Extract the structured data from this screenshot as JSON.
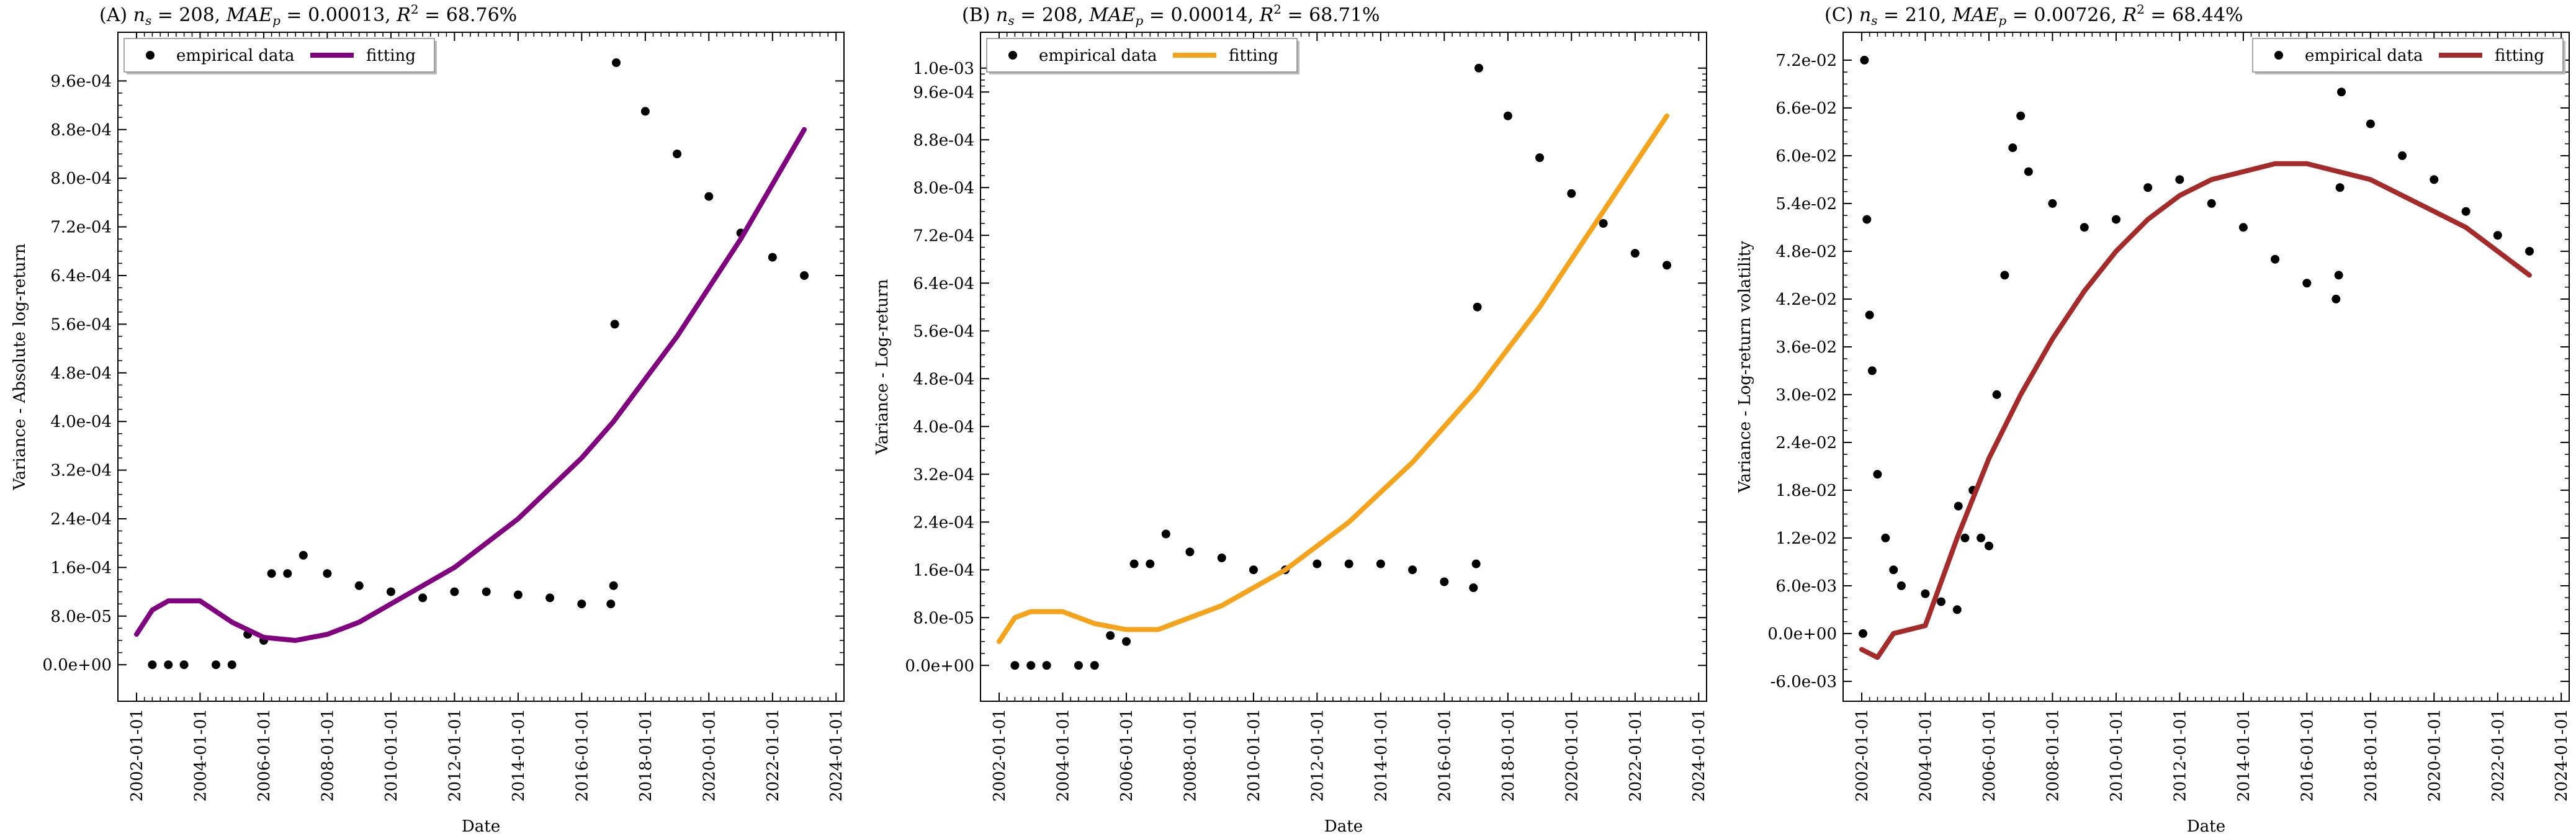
{
  "chart_data": [
    {
      "type": "scatter",
      "panel": "(A)",
      "title": "(A) n_s = 208, MAE_p = 0.00013, R² = 68.76%",
      "title_parts": {
        "prefix": "(A) ",
        "ns": "208",
        "mae": "0.00013",
        "r2": "68.76%"
      },
      "xlabel": "Date",
      "ylabel": "Variance - Absolute log-return",
      "x_tick_labels": [
        "2002-01-01",
        "2004-01-01",
        "2006-01-01",
        "2008-01-01",
        "2010-01-01",
        "2012-01-01",
        "2014-01-01",
        "2016-01-01",
        "2018-01-01",
        "2020-01-01",
        "2022-01-01",
        "2024-01-01"
      ],
      "y_tick_labels": [
        "0.0e+00",
        "8.0e-05",
        "1.6e-04",
        "2.4e-04",
        "3.2e-04",
        "4.0e-04",
        "4.8e-04",
        "5.6e-04",
        "6.4e-04",
        "7.2e-04",
        "8.0e-04",
        "8.8e-04",
        "9.6e-04"
      ],
      "y_ticks": [
        0,
        8e-05,
        0.00016,
        0.00024,
        0.00032,
        0.0004,
        0.00048,
        0.00056,
        0.00064,
        0.00072,
        0.0008,
        0.00088,
        0.00096
      ],
      "xlim": [
        "2001-06-01",
        "2024-04-01"
      ],
      "ylim": [
        -6e-05,
        0.00104
      ],
      "legend": {
        "placement": "top-left",
        "entries": [
          "empirical data",
          "fitting"
        ]
      },
      "fit_color": "#800080",
      "series": [
        {
          "name": "empirical data",
          "kind": "points",
          "x": [
            "2002-07-01",
            "2003-01-01",
            "2003-07-01",
            "2004-07-01",
            "2005-01-01",
            "2005-07-01",
            "2006-01-01",
            "2006-04-01",
            "2006-10-01",
            "2007-04-01",
            "2008-01-01",
            "2009-01-01",
            "2010-01-01",
            "2011-01-01",
            "2012-01-01",
            "2013-01-01",
            "2014-01-01",
            "2015-01-01",
            "2016-01-01",
            "2016-12-01",
            "2017-01-01",
            "2017-01-15",
            "2017-02-01",
            "2018-01-01",
            "2019-01-01",
            "2020-01-01",
            "2021-01-01",
            "2022-01-01",
            "2023-01-01"
          ],
          "y": [
            0,
            0,
            0,
            0,
            0,
            5e-05,
            4e-05,
            0.00015,
            0.00015,
            0.00018,
            0.00015,
            0.00013,
            0.00012,
            0.00011,
            0.00012,
            0.00012,
            0.000115,
            0.00011,
            0.0001,
            0.0001,
            0.00013,
            0.00056,
            0.00099,
            0.00091,
            0.00084,
            0.00077,
            0.00071,
            0.00067,
            0.00064
          ]
        },
        {
          "name": "fitting",
          "kind": "line",
          "x": [
            "2002-01-01",
            "2002-07-01",
            "2003-01-01",
            "2004-01-01",
            "2005-01-01",
            "2006-01-01",
            "2007-01-01",
            "2008-01-01",
            "2009-01-01",
            "2010-01-01",
            "2011-01-01",
            "2012-01-01",
            "2013-01-01",
            "2014-01-01",
            "2015-01-01",
            "2016-01-01",
            "2017-01-01",
            "2018-01-01",
            "2019-01-01",
            "2020-01-01",
            "2021-01-01",
            "2022-01-01",
            "2023-01-01"
          ],
          "y": [
            5e-05,
            9e-05,
            0.000105,
            0.000105,
            7e-05,
            4.5e-05,
            4e-05,
            5e-05,
            7e-05,
            0.0001,
            0.00013,
            0.00016,
            0.0002,
            0.00024,
            0.00029,
            0.00034,
            0.0004,
            0.00047,
            0.00054,
            0.00062,
            0.0007,
            0.00079,
            0.00088
          ]
        }
      ]
    },
    {
      "type": "scatter",
      "panel": "(B)",
      "title": "(B) n_s = 208, MAE_p = 0.00014, R² = 68.71%",
      "title_parts": {
        "prefix": "(B) ",
        "ns": "208",
        "mae": "0.00014",
        "r2": "68.71%"
      },
      "xlabel": "Date",
      "ylabel": "Variance - Log-return",
      "x_tick_labels": [
        "2002-01-01",
        "2004-01-01",
        "2006-01-01",
        "2008-01-01",
        "2010-01-01",
        "2012-01-01",
        "2014-01-01",
        "2016-01-01",
        "2018-01-01",
        "2020-01-01",
        "2022-01-01",
        "2024-01-01"
      ],
      "y_tick_labels": [
        "0.0e+00",
        "8.0e-05",
        "1.6e-04",
        "2.4e-04",
        "3.2e-04",
        "4.0e-04",
        "4.8e-04",
        "5.6e-04",
        "6.4e-04",
        "7.2e-04",
        "8.0e-04",
        "8.8e-04",
        "9.6e-04",
        "1.0e-03"
      ],
      "y_ticks": [
        0,
        8e-05,
        0.00016,
        0.00024,
        0.00032,
        0.0004,
        0.00048,
        0.00056,
        0.00064,
        0.00072,
        0.0008,
        0.00088,
        0.00096,
        0.001
      ],
      "xlim": [
        "2001-06-01",
        "2024-04-01"
      ],
      "ylim": [
        -6e-05,
        0.00106
      ],
      "legend": {
        "placement": "top-left",
        "entries": [
          "empirical data",
          "fitting"
        ]
      },
      "fit_color": "#f5a31a",
      "series": [
        {
          "name": "empirical data",
          "kind": "points",
          "x": [
            "2002-07-01",
            "2003-01-01",
            "2003-07-01",
            "2004-07-01",
            "2005-01-01",
            "2005-07-01",
            "2006-01-01",
            "2006-04-01",
            "2006-10-01",
            "2007-04-01",
            "2008-01-01",
            "2009-01-01",
            "2010-01-01",
            "2011-01-01",
            "2012-01-01",
            "2013-01-01",
            "2014-01-01",
            "2015-01-01",
            "2016-01-01",
            "2016-12-01",
            "2017-01-01",
            "2017-01-15",
            "2017-02-01",
            "2018-01-01",
            "2019-01-01",
            "2020-01-01",
            "2021-01-01",
            "2022-01-01",
            "2023-01-01"
          ],
          "y": [
            0,
            0,
            0,
            0,
            0,
            5e-05,
            4e-05,
            0.00017,
            0.00017,
            0.00022,
            0.00019,
            0.00018,
            0.00016,
            0.00016,
            0.00017,
            0.00017,
            0.00017,
            0.00016,
            0.00014,
            0.00013,
            0.00017,
            0.0006,
            0.001,
            0.00092,
            0.00085,
            0.00079,
            0.00074,
            0.00069,
            0.00067
          ]
        },
        {
          "name": "fitting",
          "kind": "line",
          "x": [
            "2002-01-01",
            "2002-07-01",
            "2003-01-01",
            "2004-01-01",
            "2005-01-01",
            "2006-01-01",
            "2007-01-01",
            "2008-01-01",
            "2009-01-01",
            "2010-01-01",
            "2011-01-01",
            "2012-01-01",
            "2013-01-01",
            "2014-01-01",
            "2015-01-01",
            "2016-01-01",
            "2017-01-01",
            "2018-01-01",
            "2019-01-01",
            "2020-01-01",
            "2021-01-01",
            "2022-01-01",
            "2023-01-01"
          ],
          "y": [
            4e-05,
            8e-05,
            9e-05,
            9e-05,
            7e-05,
            6e-05,
            6e-05,
            8e-05,
            0.0001,
            0.00013,
            0.00016,
            0.0002,
            0.00024,
            0.00029,
            0.00034,
            0.0004,
            0.00046,
            0.00053,
            0.0006,
            0.00068,
            0.00076,
            0.00084,
            0.00092
          ]
        }
      ]
    },
    {
      "type": "scatter",
      "panel": "(C)",
      "title": "(C) n_s = 210, MAE_p = 0.00726, R² = 68.44%",
      "title_parts": {
        "prefix": "(C) ",
        "ns": "210",
        "mae": "0.00726",
        "r2": "68.44%"
      },
      "xlabel": "Date",
      "ylabel": "Variance - Log-return volatility",
      "x_tick_labels": [
        "2002-01-01",
        "2004-01-01",
        "2006-01-01",
        "2008-01-01",
        "2010-01-01",
        "2012-01-01",
        "2014-01-01",
        "2016-01-01",
        "2018-01-01",
        "2020-01-01",
        "2022-01-01",
        "2024-01-01"
      ],
      "y_tick_labels": [
        "-6.0e-03",
        "0.0e+00",
        "6.0e-03",
        "1.2e-02",
        "1.8e-02",
        "2.4e-02",
        "3.0e-02",
        "3.6e-02",
        "4.2e-02",
        "4.8e-02",
        "5.4e-02",
        "6.0e-02",
        "6.6e-02",
        "7.2e-02"
      ],
      "y_ticks": [
        -0.006,
        0,
        0.006,
        0.012,
        0.018,
        0.024,
        0.03,
        0.036,
        0.042,
        0.048,
        0.054,
        0.06,
        0.066,
        0.072
      ],
      "xlim": [
        "2001-06-01",
        "2024-04-01"
      ],
      "ylim": [
        -0.0085,
        0.0755
      ],
      "legend": {
        "placement": "top-right",
        "entries": [
          "empirical data",
          "fitting"
        ]
      },
      "fit_color": "#a52a2a",
      "series": [
        {
          "name": "empirical data",
          "kind": "points",
          "x": [
            "2002-01-15",
            "2002-02-01",
            "2002-03-01",
            "2002-04-01",
            "2002-05-01",
            "2002-07-01",
            "2002-10-01",
            "2003-01-01",
            "2003-04-01",
            "2004-01-01",
            "2004-07-01",
            "2005-01-01",
            "2005-01-15",
            "2005-04-01",
            "2005-07-01",
            "2005-10-01",
            "2006-01-01",
            "2006-04-01",
            "2006-07-01",
            "2006-10-01",
            "2007-01-01",
            "2007-04-01",
            "2008-01-01",
            "2009-01-01",
            "2010-01-01",
            "2011-01-01",
            "2012-01-01",
            "2013-01-01",
            "2014-01-01",
            "2015-01-01",
            "2016-01-01",
            "2016-12-01",
            "2017-01-01",
            "2017-01-15",
            "2017-02-01",
            "2018-01-01",
            "2019-01-01",
            "2020-01-01",
            "2021-01-01",
            "2022-01-01",
            "2023-01-01"
          ],
          "y": [
            0,
            0.072,
            0.052,
            0.04,
            0.033,
            0.02,
            0.012,
            0.008,
            0.006,
            0.005,
            0.004,
            0.003,
            0.016,
            0.012,
            0.018,
            0.012,
            0.011,
            0.03,
            0.045,
            0.061,
            0.065,
            0.058,
            0.054,
            0.051,
            0.052,
            0.056,
            0.057,
            0.054,
            0.051,
            0.047,
            0.044,
            0.042,
            0.045,
            0.056,
            0.068,
            0.064,
            0.06,
            0.057,
            0.053,
            0.05,
            0.048
          ]
        },
        {
          "name": "fitting",
          "kind": "line",
          "x": [
            "2002-01-01",
            "2002-07-01",
            "2003-01-01",
            "2004-01-01",
            "2005-01-01",
            "2006-01-01",
            "2007-01-01",
            "2008-01-01",
            "2009-01-01",
            "2010-01-01",
            "2011-01-01",
            "2012-01-01",
            "2013-01-01",
            "2014-01-01",
            "2015-01-01",
            "2016-01-01",
            "2017-01-01",
            "2018-01-01",
            "2019-01-01",
            "2020-01-01",
            "2021-01-01",
            "2022-01-01",
            "2023-01-01"
          ],
          "y": [
            -0.002,
            -0.003,
            0,
            0.001,
            0.012,
            0.022,
            0.03,
            0.037,
            0.043,
            0.048,
            0.052,
            0.055,
            0.057,
            0.058,
            0.059,
            0.059,
            0.058,
            0.057,
            0.055,
            0.053,
            0.051,
            0.048,
            0.045
          ]
        }
      ]
    }
  ]
}
